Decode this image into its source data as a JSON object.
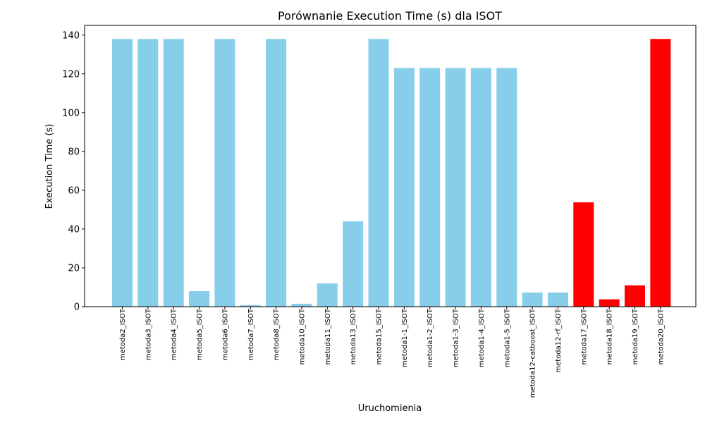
{
  "colors": {
    "normal": "#87ceeb",
    "highlight": "#ff0000",
    "axis": "#000000"
  },
  "chart_data": {
    "type": "bar",
    "title": "Porównanie Execution Time (s) dla ISOT",
    "xlabel": "Uruchomienia",
    "ylabel": "Execution Time (s)",
    "ylim": [
      0,
      145
    ],
    "yticks": [
      0,
      20,
      40,
      60,
      80,
      100,
      120,
      140
    ],
    "grid": false,
    "categories": [
      "metoda2_ISOT",
      "metoda3_ISOT",
      "metoda4_ISOT",
      "metoda5_ISOT",
      "metoda6_ISOT",
      "metoda7_ISOT",
      "metoda8_ISOT",
      "metoda10_ISOT",
      "metoda11_ISOT",
      "metoda13_ISOT",
      "metoda15_ISOT",
      "metoda1-1_ISOT",
      "metoda1-2_ISOT",
      "metoda1-3_ISOT",
      "metoda1-4_ISOT",
      "metoda1-5_ISOT",
      "metoda12-catboost_ISOT",
      "metoda12-rf_ISOT",
      "metoda17_ISOT",
      "metoda18_ISOT",
      "metoda19_ISOT",
      "metoda20_ISOT"
    ],
    "values": [
      138,
      138,
      138,
      8,
      138,
      0.8,
      138,
      1.5,
      12,
      44,
      138,
      123,
      123,
      123,
      123,
      123,
      7.3,
      7.3,
      53.8,
      3.8,
      11,
      138
    ],
    "highlighted": [
      false,
      false,
      false,
      false,
      false,
      false,
      false,
      false,
      false,
      false,
      false,
      false,
      false,
      false,
      false,
      false,
      false,
      false,
      true,
      true,
      true,
      true
    ]
  }
}
